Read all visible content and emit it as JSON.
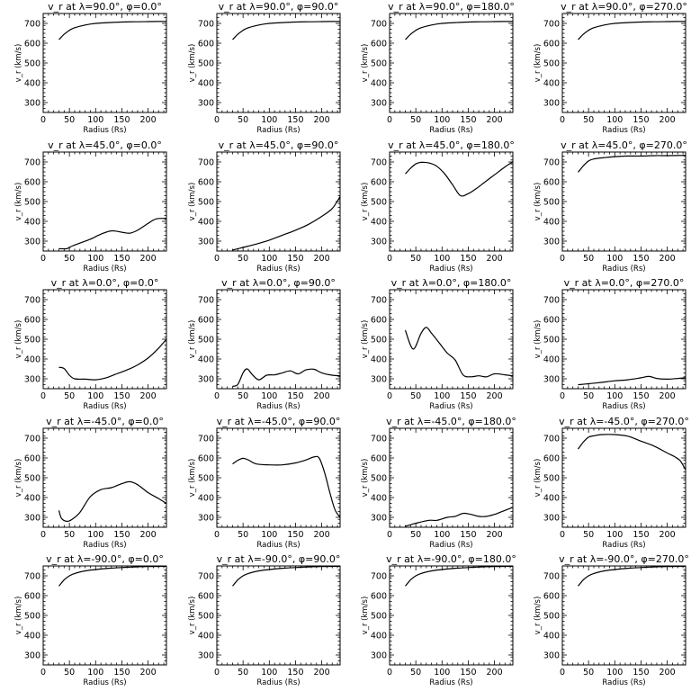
{
  "chart_data": [
    {
      "type": "line",
      "title": "v_r at λ=90.0°, φ=0.0°",
      "xlabel": "Radius (Rs)",
      "ylabel": "v_r (km/s)",
      "xlim": [
        0,
        235
      ],
      "ylim": [
        250,
        750
      ],
      "xticks": [
        0,
        50,
        100,
        150,
        200
      ],
      "yticks": [
        300,
        400,
        500,
        600,
        700
      ],
      "series": [
        {
          "x": [
            30,
            40,
            50,
            60,
            80,
            100,
            125,
            150,
            175,
            200,
            235
          ],
          "y": [
            618,
            645,
            665,
            678,
            692,
            700,
            704,
            707,
            708,
            709,
            710
          ]
        }
      ]
    },
    {
      "type": "line",
      "title": "v_r at λ=90.0°, φ=90.0°",
      "xlabel": "Radius (Rs)",
      "ylabel": "v_r (km/s)",
      "xlim": [
        0,
        235
      ],
      "ylim": [
        250,
        750
      ],
      "xticks": [
        0,
        50,
        100,
        150,
        200
      ],
      "yticks": [
        300,
        400,
        500,
        600,
        700
      ],
      "series": [
        {
          "x": [
            30,
            40,
            50,
            60,
            80,
            100,
            125,
            150,
            175,
            200,
            235
          ],
          "y": [
            618,
            645,
            665,
            678,
            692,
            700,
            704,
            707,
            708,
            709,
            710
          ]
        }
      ]
    },
    {
      "type": "line",
      "title": "v_r at λ=90.0°, φ=180.0°",
      "xlabel": "Radius (Rs)",
      "ylabel": "v_r (km/s)",
      "xlim": [
        0,
        235
      ],
      "ylim": [
        250,
        750
      ],
      "xticks": [
        0,
        50,
        100,
        150,
        200
      ],
      "yticks": [
        300,
        400,
        500,
        600,
        700
      ],
      "series": [
        {
          "x": [
            30,
            40,
            50,
            60,
            80,
            100,
            125,
            150,
            175,
            200,
            235
          ],
          "y": [
            618,
            645,
            665,
            678,
            692,
            700,
            704,
            707,
            708,
            709,
            710
          ]
        }
      ]
    },
    {
      "type": "line",
      "title": "v_r at λ=90.0°, φ=270.0°",
      "xlabel": "Radius (Rs)",
      "ylabel": "v_r (km/s)",
      "xlim": [
        0,
        235
      ],
      "ylim": [
        250,
        750
      ],
      "xticks": [
        0,
        50,
        100,
        150,
        200
      ],
      "yticks": [
        300,
        400,
        500,
        600,
        700
      ],
      "series": [
        {
          "x": [
            30,
            40,
            50,
            60,
            80,
            100,
            125,
            150,
            175,
            200,
            235
          ],
          "y": [
            618,
            645,
            665,
            678,
            692,
            700,
            704,
            707,
            708,
            709,
            710
          ]
        }
      ]
    },
    {
      "type": "line",
      "title": "v_r at λ=45.0°, φ=0.0°",
      "xlabel": "Radius (Rs)",
      "ylabel": "v_r (km/s)",
      "xlim": [
        0,
        235
      ],
      "ylim": [
        250,
        750
      ],
      "xticks": [
        0,
        50,
        100,
        150,
        200
      ],
      "yticks": [
        300,
        400,
        500,
        600,
        700
      ],
      "series": [
        {
          "x": [
            30,
            45,
            55,
            70,
            90,
            110,
            130,
            150,
            165,
            180,
            200,
            215,
            235
          ],
          "y": [
            262,
            262,
            275,
            290,
            310,
            335,
            352,
            345,
            340,
            355,
            390,
            412,
            415
          ]
        }
      ]
    },
    {
      "type": "line",
      "title": "v_r at λ=45.0°, φ=90.0°",
      "xlabel": "Radius (Rs)",
      "ylabel": "v_r (km/s)",
      "xlim": [
        0,
        235
      ],
      "ylim": [
        250,
        750
      ],
      "xticks": [
        0,
        50,
        100,
        150,
        200
      ],
      "yticks": [
        300,
        400,
        500,
        600,
        700
      ],
      "series": [
        {
          "x": [
            30,
            50,
            75,
            100,
            125,
            150,
            175,
            200,
            220,
            235
          ],
          "y": [
            255,
            268,
            285,
            305,
            330,
            355,
            385,
            425,
            465,
            525
          ]
        }
      ]
    },
    {
      "type": "line",
      "title": "v_r at λ=45.0°, φ=180.0°",
      "xlabel": "Radius (Rs)",
      "ylabel": "v_r (km/s)",
      "xlim": [
        0,
        235
      ],
      "ylim": [
        250,
        750
      ],
      "xticks": [
        0,
        50,
        100,
        150,
        200
      ],
      "yticks": [
        300,
        400,
        500,
        600,
        700
      ],
      "series": [
        {
          "x": [
            30,
            40,
            50,
            60,
            75,
            90,
            105,
            120,
            135,
            150,
            165,
            180,
            200,
            220,
            235
          ],
          "y": [
            640,
            668,
            690,
            698,
            695,
            678,
            640,
            585,
            530,
            540,
            565,
            595,
            635,
            675,
            700
          ]
        }
      ]
    },
    {
      "type": "line",
      "title": "v_r at λ=45.0°, φ=270.0°",
      "xlabel": "Radius (Rs)",
      "ylabel": "v_r (km/s)",
      "xlim": [
        0,
        235
      ],
      "ylim": [
        250,
        750
      ],
      "xticks": [
        0,
        50,
        100,
        150,
        200
      ],
      "yticks": [
        300,
        400,
        500,
        600,
        700
      ],
      "series": [
        {
          "x": [
            30,
            40,
            50,
            60,
            80,
            100,
            125,
            150,
            175,
            200,
            235
          ],
          "y": [
            648,
            680,
            705,
            715,
            722,
            727,
            730,
            730,
            732,
            732,
            733
          ]
        }
      ]
    },
    {
      "type": "line",
      "title": "v_r at λ=0.0°, φ=0.0°",
      "xlabel": "Radius (Rs)",
      "ylabel": "v_r (km/s)",
      "xlim": [
        0,
        235
      ],
      "ylim": [
        250,
        750
      ],
      "xticks": [
        0,
        50,
        100,
        150,
        200
      ],
      "yticks": [
        300,
        400,
        500,
        600,
        700
      ],
      "series": [
        {
          "x": [
            30,
            40,
            50,
            60,
            80,
            100,
            120,
            140,
            160,
            180,
            200,
            220,
            235
          ],
          "y": [
            358,
            352,
            318,
            300,
            298,
            295,
            305,
            325,
            345,
            370,
            405,
            455,
            500
          ]
        }
      ]
    },
    {
      "type": "line",
      "title": "v_r at λ=0.0°, φ=90.0°",
      "xlabel": "Radius (Rs)",
      "ylabel": "v_r (km/s)",
      "xlim": [
        0,
        235
      ],
      "ylim": [
        250,
        750
      ],
      "xticks": [
        0,
        50,
        100,
        150,
        200
      ],
      "yticks": [
        300,
        400,
        500,
        600,
        700
      ],
      "series": [
        {
          "x": [
            30,
            40,
            50,
            58,
            68,
            80,
            95,
            110,
            125,
            140,
            155,
            170,
            185,
            200,
            220,
            235
          ],
          "y": [
            262,
            272,
            330,
            350,
            320,
            295,
            318,
            320,
            330,
            340,
            325,
            345,
            348,
            330,
            318,
            315
          ]
        }
      ]
    },
    {
      "type": "line",
      "title": "v_r at λ=0.0°, φ=180.0°",
      "xlabel": "Radius (Rs)",
      "ylabel": "v_r (km/s)",
      "xlim": [
        0,
        235
      ],
      "ylim": [
        250,
        750
      ],
      "xticks": [
        0,
        50,
        100,
        150,
        200
      ],
      "yticks": [
        300,
        400,
        500,
        600,
        700
      ],
      "series": [
        {
          "x": [
            30,
            45,
            60,
            70,
            80,
            95,
            110,
            125,
            140,
            155,
            170,
            185,
            200,
            220,
            235
          ],
          "y": [
            545,
            450,
            530,
            560,
            530,
            480,
            430,
            395,
            320,
            310,
            315,
            310,
            325,
            320,
            315
          ]
        }
      ]
    },
    {
      "type": "line",
      "title": "v_r at λ=0.0°, φ=270.0°",
      "xlabel": "Radius (Rs)",
      "ylabel": "v_r (km/s)",
      "xlim": [
        0,
        235
      ],
      "ylim": [
        250,
        750
      ],
      "xticks": [
        0,
        50,
        100,
        150,
        200
      ],
      "yticks": [
        300,
        400,
        500,
        600,
        700
      ],
      "series": [
        {
          "x": [
            30,
            50,
            75,
            100,
            125,
            150,
            165,
            180,
            200,
            220,
            235
          ],
          "y": [
            270,
            275,
            282,
            290,
            295,
            305,
            312,
            302,
            298,
            302,
            305
          ]
        }
      ]
    },
    {
      "type": "line",
      "title": "v_r at λ=-45.0°, φ=0.0°",
      "xlabel": "Radius (Rs)",
      "ylabel": "v_r (km/s)",
      "xlim": [
        0,
        235
      ],
      "ylim": [
        250,
        750
      ],
      "xticks": [
        0,
        50,
        100,
        150,
        200
      ],
      "yticks": [
        300,
        400,
        500,
        600,
        700
      ],
      "series": [
        {
          "x": [
            30,
            35,
            45,
            55,
            70,
            90,
            110,
            130,
            150,
            165,
            180,
            200,
            220,
            235
          ],
          "y": [
            335,
            295,
            280,
            290,
            325,
            405,
            440,
            450,
            470,
            480,
            465,
            425,
            395,
            370
          ]
        }
      ]
    },
    {
      "type": "line",
      "title": "v_r at λ=-45.0°, φ=90.0°",
      "xlabel": "Radius (Rs)",
      "ylabel": "v_r (km/s)",
      "xlim": [
        0,
        235
      ],
      "ylim": [
        250,
        750
      ],
      "xticks": [
        0,
        50,
        100,
        150,
        200
      ],
      "yticks": [
        300,
        400,
        500,
        600,
        700
      ],
      "series": [
        {
          "x": [
            30,
            40,
            50,
            60,
            75,
            100,
            125,
            150,
            170,
            185,
            195,
            205,
            215,
            225,
            235
          ],
          "y": [
            570,
            588,
            598,
            590,
            570,
            565,
            565,
            575,
            590,
            605,
            600,
            530,
            430,
            340,
            300
          ]
        }
      ]
    },
    {
      "type": "line",
      "title": "v_r at λ=-45.0°, φ=180.0°",
      "xlabel": "Radius (Rs)",
      "ylabel": "v_r (km/s)",
      "xlim": [
        0,
        235
      ],
      "ylim": [
        250,
        750
      ],
      "xticks": [
        0,
        50,
        100,
        150,
        200
      ],
      "yticks": [
        300,
        400,
        500,
        600,
        700
      ],
      "series": [
        {
          "x": [
            30,
            50,
            75,
            90,
            110,
            125,
            140,
            155,
            170,
            185,
            200,
            215,
            235
          ],
          "y": [
            255,
            270,
            285,
            285,
            300,
            305,
            320,
            315,
            305,
            305,
            315,
            330,
            350
          ]
        }
      ]
    },
    {
      "type": "line",
      "title": "v_r at λ=-45.0°, φ=270.0°",
      "xlabel": "Radius (Rs)",
      "ylabel": "v_r (km/s)",
      "xlim": [
        0,
        235
      ],
      "ylim": [
        250,
        750
      ],
      "xticks": [
        0,
        50,
        100,
        150,
        200
      ],
      "yticks": [
        300,
        400,
        500,
        600,
        700
      ],
      "series": [
        {
          "x": [
            30,
            40,
            50,
            60,
            75,
            100,
            125,
            150,
            175,
            200,
            215,
            225,
            235
          ],
          "y": [
            645,
            680,
            705,
            712,
            718,
            718,
            710,
            685,
            660,
            625,
            605,
            585,
            540
          ]
        }
      ]
    },
    {
      "type": "line",
      "title": "v_r at λ=-90.0°, φ=0.0°",
      "xlabel": "Radius (Rs)",
      "ylabel": "v_r (km/s)",
      "xlim": [
        0,
        235
      ],
      "ylim": [
        250,
        750
      ],
      "xticks": [
        0,
        50,
        100,
        150,
        200
      ],
      "yticks": [
        300,
        400,
        500,
        600,
        700
      ],
      "series": [
        {
          "x": [
            30,
            40,
            50,
            60,
            80,
            100,
            125,
            150,
            175,
            200,
            235
          ],
          "y": [
            648,
            680,
            700,
            712,
            725,
            732,
            738,
            742,
            745,
            747,
            748
          ]
        }
      ]
    },
    {
      "type": "line",
      "title": "v_r at λ=-90.0°, φ=90.0°",
      "xlabel": "Radius (Rs)",
      "ylabel": "v_r (km/s)",
      "xlim": [
        0,
        235
      ],
      "ylim": [
        250,
        750
      ],
      "xticks": [
        0,
        50,
        100,
        150,
        200
      ],
      "yticks": [
        300,
        400,
        500,
        600,
        700
      ],
      "series": [
        {
          "x": [
            30,
            40,
            50,
            60,
            80,
            100,
            125,
            150,
            175,
            200,
            235
          ],
          "y": [
            648,
            680,
            700,
            712,
            725,
            732,
            738,
            742,
            745,
            747,
            748
          ]
        }
      ]
    },
    {
      "type": "line",
      "title": "v_r at λ=-90.0°, φ=180.0°",
      "xlabel": "Radius (Rs)",
      "ylabel": "v_r (km/s)",
      "xlim": [
        0,
        235
      ],
      "ylim": [
        250,
        750
      ],
      "xticks": [
        0,
        50,
        100,
        150,
        200
      ],
      "yticks": [
        300,
        400,
        500,
        600,
        700
      ],
      "series": [
        {
          "x": [
            30,
            40,
            50,
            60,
            80,
            100,
            125,
            150,
            175,
            200,
            235
          ],
          "y": [
            648,
            680,
            700,
            712,
            725,
            732,
            738,
            742,
            745,
            747,
            748
          ]
        }
      ]
    },
    {
      "type": "line",
      "title": "v_r at λ=-90.0°, φ=270.0°",
      "xlabel": "Radius (Rs)",
      "ylabel": "v_r (km/s)",
      "xlim": [
        0,
        235
      ],
      "ylim": [
        250,
        750
      ],
      "xticks": [
        0,
        50,
        100,
        150,
        200
      ],
      "yticks": [
        300,
        400,
        500,
        600,
        700
      ],
      "series": [
        {
          "x": [
            30,
            40,
            50,
            60,
            80,
            100,
            125,
            150,
            175,
            200,
            235
          ],
          "y": [
            648,
            680,
            700,
            712,
            725,
            732,
            738,
            742,
            745,
            747,
            748
          ]
        }
      ]
    }
  ]
}
